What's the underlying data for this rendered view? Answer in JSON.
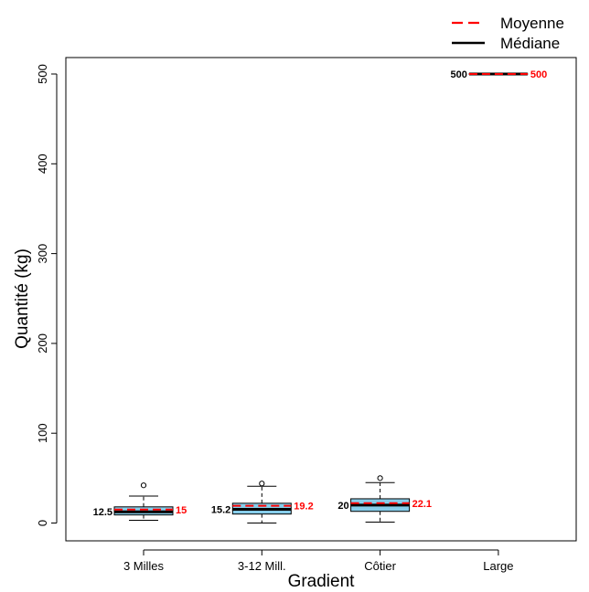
{
  "chart_data": {
    "type": "box",
    "title": "",
    "xlabel": "Gradient",
    "ylabel": "Quantité (kg)",
    "ylim": [
      -20,
      520
    ],
    "yticks": [
      0,
      100,
      200,
      300,
      400,
      500
    ],
    "categories": [
      "3 Milles",
      "3-12 Mill.",
      "Côtier",
      "Large"
    ],
    "series": [
      {
        "category": "3 Milles",
        "whisker_low": 3,
        "q1": 9,
        "median": 12.5,
        "q3": 18,
        "whisker_high": 30,
        "outliers": [
          42
        ],
        "mean": 15,
        "median_label": "12.5",
        "mean_label": "15"
      },
      {
        "category": "3-12 Mill.",
        "whisker_low": 0,
        "q1": 10,
        "median": 15.2,
        "q3": 22,
        "whisker_high": 41,
        "outliers": [
          44
        ],
        "mean": 19.2,
        "median_label": "15.2",
        "mean_label": "19.2"
      },
      {
        "category": "Côtier",
        "whisker_low": 1,
        "q1": 13,
        "median": 20,
        "q3": 27,
        "whisker_high": 45,
        "outliers": [
          50
        ],
        "mean": 22.1,
        "median_label": "20",
        "mean_label": "22.1"
      },
      {
        "category": "Large",
        "whisker_low": 500,
        "q1": 500,
        "median": 500,
        "q3": 500,
        "whisker_high": 500,
        "outliers": [],
        "mean": 500,
        "median_label": "500",
        "mean_label": "500"
      }
    ],
    "legend": {
      "position": "top-right",
      "items": [
        {
          "label": "Moyenne",
          "style": "dashed",
          "color": "#ff0000"
        },
        {
          "label": "Médiane",
          "style": "solid",
          "color": "#000000"
        }
      ]
    },
    "colors": {
      "box_fill": "#87ceeb",
      "median": "#000000",
      "mean": "#ff0000",
      "mean_label": "#ff0000",
      "median_label": "#000000"
    },
    "grid": false
  }
}
